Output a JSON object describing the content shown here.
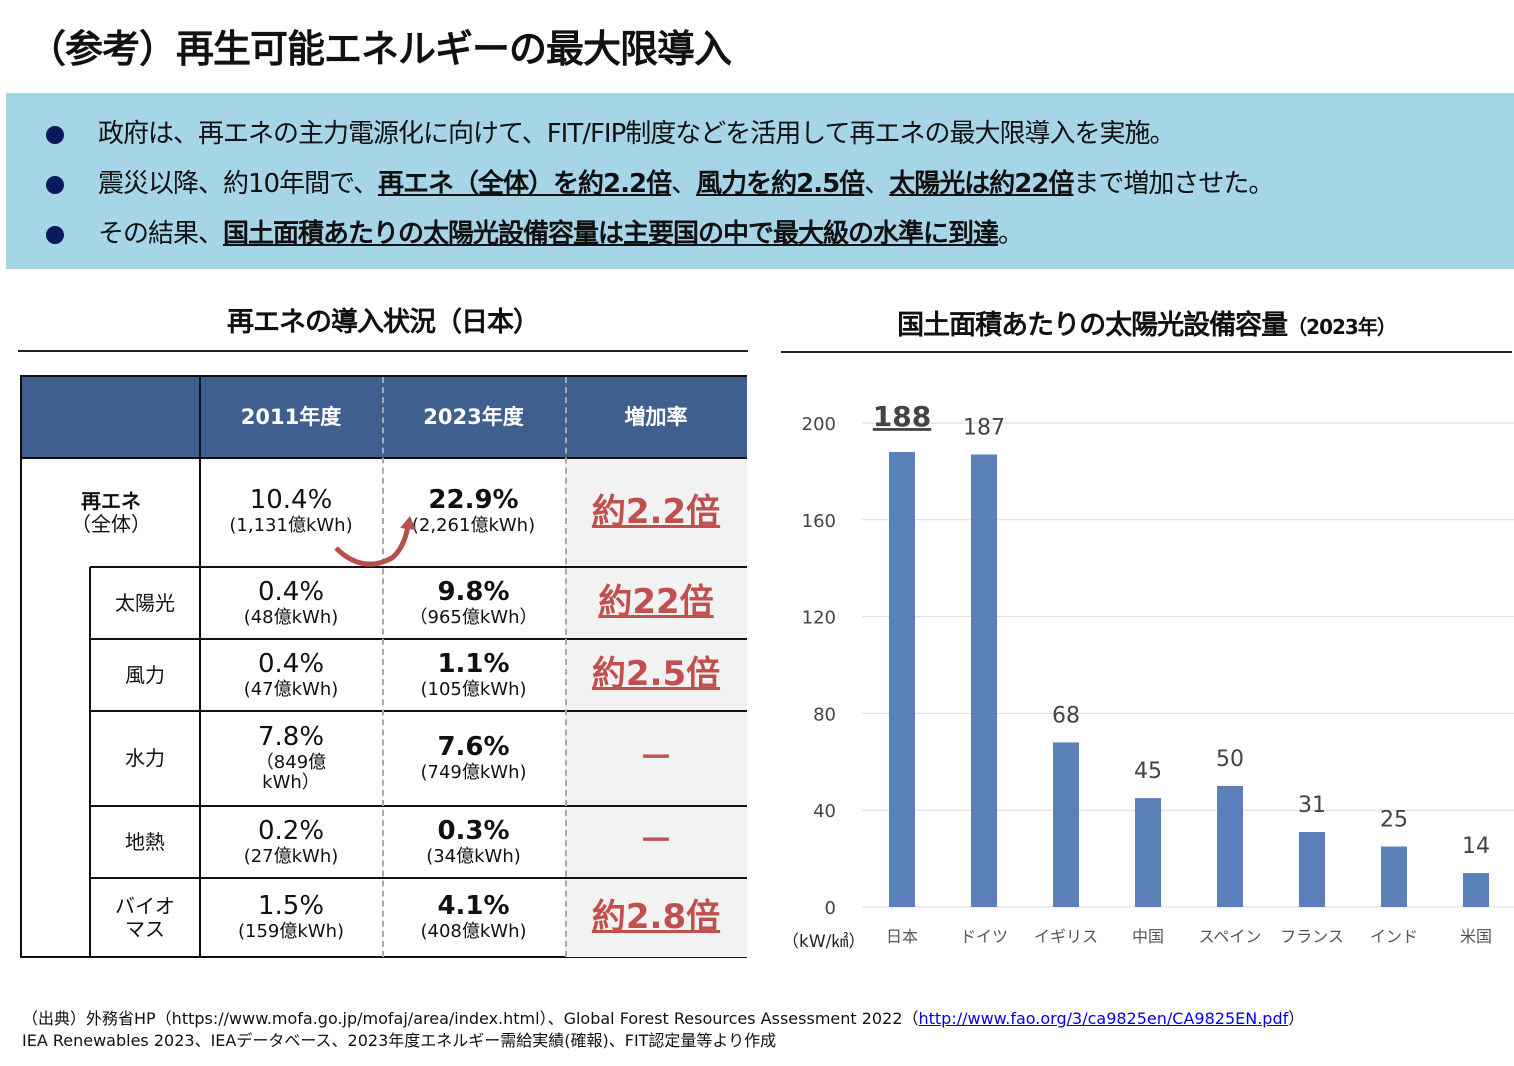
{
  "title": "（参考）再生可能エネルギーの最大限導入",
  "bullets": [
    {
      "parts": [
        {
          "t": "政府は、再エネの主力電源化に向けて、FIT/FIP制度などを活用して再エネの最大限導入を実施。",
          "u": false
        }
      ]
    },
    {
      "parts": [
        {
          "t": "震災以降、約10年間で、",
          "u": false
        },
        {
          "t": "再エネ（全体）を約2.2倍",
          "u": true
        },
        {
          "t": "、",
          "u": false
        },
        {
          "t": "風力を約2.5倍",
          "u": true
        },
        {
          "t": "、",
          "u": false
        },
        {
          "t": "太陽光は約22倍",
          "u": true
        },
        {
          "t": "まで増加させた。",
          "u": false
        }
      ]
    },
    {
      "parts": [
        {
          "t": "その結果、",
          "u": false
        },
        {
          "t": "国土面積あたりの太陽光設備容量は主要国の中で最大級の水準に到達",
          "u": true
        },
        {
          "t": "。",
          "u": false
        }
      ]
    }
  ],
  "table": {
    "title": "再エネの導入状況（日本）",
    "headers": [
      "",
      "2011年度",
      "2023年度",
      "増加率"
    ],
    "rows": [
      {
        "label": "再エネ",
        "label2": "（全体）",
        "v2011": "10.4%",
        "s2011": "(1,131億kWh)",
        "v2023": "22.9%",
        "s2023": "(2,261億kWh)",
        "rate": "約2.2倍"
      },
      {
        "label": "太陽光",
        "v2011": "0.4%",
        "s2011": "(48億kWh)",
        "v2023": "9.8%",
        "s2023": "（965億kWh）",
        "rate": "約22倍"
      },
      {
        "label": "風力",
        "v2011": "0.4%",
        "s2011": "(47億kWh)",
        "v2023": "1.1%",
        "s2023": "(105億kWh)",
        "rate": "約2.5倍"
      },
      {
        "label": "水力",
        "v2011": "7.8%",
        "s2011": "（849億 kWh）",
        "v2023": "7.6%",
        "s2023": "(749億kWh)",
        "rate": "－"
      },
      {
        "label": "地熱",
        "v2011": "0.2%",
        "s2011": "(27億kWh)",
        "v2023": "0.3%",
        "s2023": "(34億kWh)",
        "rate": "－"
      },
      {
        "label": "バイオ マス",
        "v2011": "1.5%",
        "s2011": "(159億kWh)",
        "v2023": "4.1%",
        "s2023": "(408億kWh)",
        "rate": "約2.8倍"
      }
    ],
    "colors": {
      "header": "#3f5f8f",
      "rate": "#c0504d",
      "rate_bg": "#f2f2f2"
    }
  },
  "chart_data": {
    "type": "bar",
    "title": "国土面積あたりの太陽光設備容量",
    "title_suffix": "（2023年）",
    "categories": [
      "日本",
      "ドイツ",
      "イギリス",
      "中国",
      "スペイン",
      "フランス",
      "インド",
      "米国"
    ],
    "values": [
      188,
      187,
      68,
      45,
      50,
      31,
      25,
      14
    ],
    "data_labels": [
      "188",
      "187",
      "68",
      "45",
      "50",
      "31",
      "25",
      "14"
    ],
    "ylabel": "（kW/㎢）",
    "ylim": [
      0,
      200
    ],
    "yticks": [
      0,
      40,
      80,
      120,
      160,
      200
    ],
    "grid": true,
    "bar_color": "#5b80b9",
    "highlight": "日本"
  },
  "source": {
    "line1_pre": "（出典）外務省HP（https://www.mofa.go.jp/mofaj/area/index.html）、Global Forest Resources Assessment 2022（",
    "link": "http://www.fao.org/3/ca9825en/CA9825EN.pdf",
    "line1_post": "）",
    "line2": "IEA Renewables 2023、IEAデータベース、2023年度エネルギー需給実績(確報)、FIT認定量等より作成"
  }
}
